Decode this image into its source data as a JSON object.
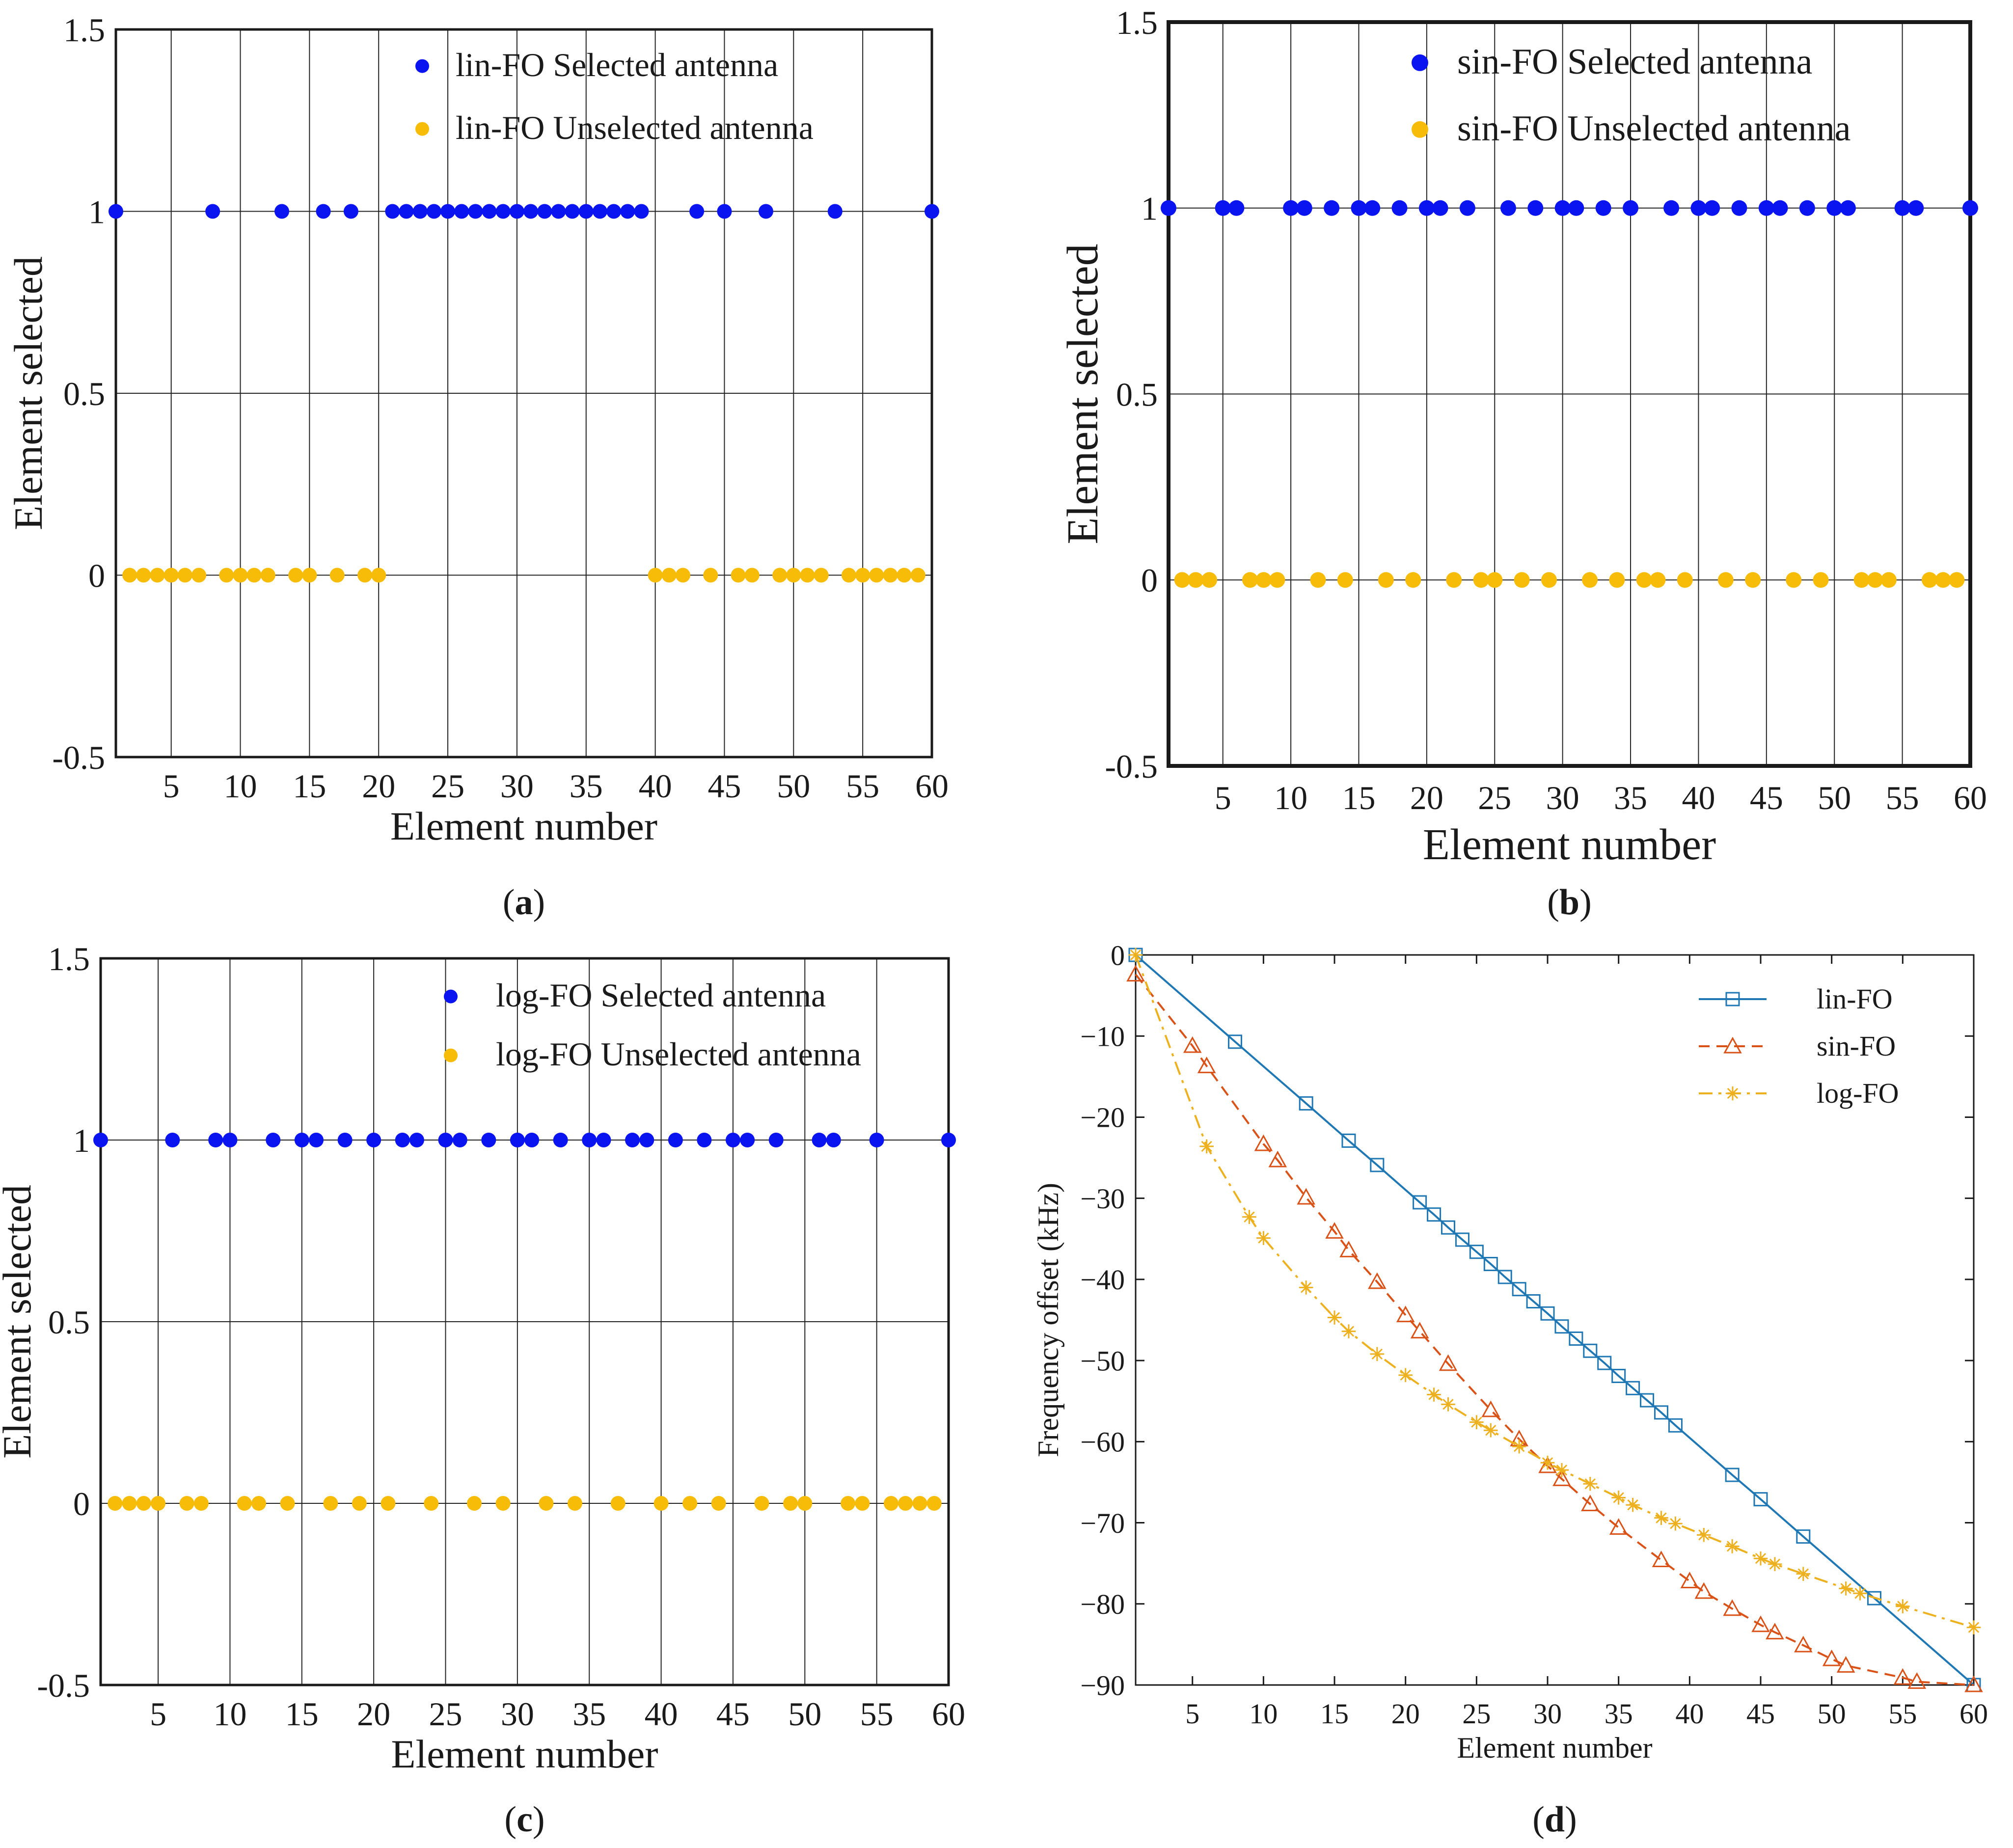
{
  "colors": {
    "selected": "#0a14f0",
    "unselected": "#f7bc08",
    "lin": "#1f77b4",
    "sin": "#d95319",
    "log": "#edb120",
    "axis": "#1a1a1a"
  },
  "chart_data": [
    {
      "id": "a",
      "type": "scatter",
      "caption_letter": "a",
      "xlabel": "Element number",
      "ylabel": "Element selected",
      "xlim": [
        1,
        60
      ],
      "ylim": [
        -0.5,
        1.5
      ],
      "x_ticks": [
        5,
        10,
        15,
        20,
        25,
        30,
        35,
        40,
        45,
        50,
        55,
        60
      ],
      "y_ticks": [
        -0.5,
        0,
        0.5,
        1,
        1.5
      ],
      "y_tick_labels": [
        "-0.5",
        "0",
        "0.5",
        "1",
        "1.5"
      ],
      "grid": true,
      "legend_position": "top-right",
      "series": [
        {
          "name": "lin-FO Selected antenna",
          "y": 1,
          "x": [
            1,
            8,
            13,
            16,
            18,
            21,
            22,
            23,
            24,
            25,
            26,
            27,
            28,
            29,
            30,
            31,
            32,
            33,
            34,
            35,
            36,
            37,
            38,
            39,
            43,
            45,
            48,
            53,
            60
          ]
        },
        {
          "name": "lin-FO Unselected antenna",
          "y": 0,
          "x": [
            2,
            3,
            4,
            5,
            6,
            7,
            9,
            10,
            11,
            12,
            14,
            15,
            17,
            19,
            20,
            40,
            41,
            42,
            44,
            46,
            47,
            49,
            50,
            51,
            52,
            54,
            55,
            56,
            57,
            58,
            59
          ]
        }
      ]
    },
    {
      "id": "b",
      "type": "scatter",
      "caption_letter": "b",
      "xlabel": "Element number",
      "ylabel": "Element selected",
      "xlim": [
        1,
        60
      ],
      "ylim": [
        -0.5,
        1.5
      ],
      "x_ticks": [
        5,
        10,
        15,
        20,
        25,
        30,
        35,
        40,
        45,
        50,
        55,
        60
      ],
      "y_ticks": [
        -0.5,
        0,
        0.5,
        1,
        1.5
      ],
      "y_tick_labels": [
        "-0.5",
        "0",
        "0.5",
        "1",
        "1.5"
      ],
      "grid": true,
      "legend_position": "top-right",
      "series": [
        {
          "name": "sin-FO Selected antenna",
          "y": 1,
          "x": [
            1,
            5,
            6,
            10,
            11,
            13,
            15,
            16,
            18,
            20,
            21,
            23,
            26,
            28,
            30,
            31,
            33,
            35,
            38,
            40,
            41,
            43,
            45,
            46,
            48,
            50,
            51,
            55,
            56,
            60
          ]
        },
        {
          "name": "sin-FO Unselected antenna",
          "y": 0,
          "x": [
            2,
            3,
            4,
            7,
            8,
            9,
            12,
            14,
            17,
            19,
            22,
            24,
            25,
            27,
            29,
            32,
            34,
            36,
            37,
            39,
            42,
            44,
            47,
            49,
            52,
            53,
            54,
            57,
            58,
            59
          ]
        }
      ]
    },
    {
      "id": "c",
      "type": "scatter",
      "caption_letter": "c",
      "xlabel": "Element number",
      "ylabel": "Element selected",
      "xlim": [
        1,
        60
      ],
      "ylim": [
        -0.5,
        1.5
      ],
      "x_ticks": [
        5,
        10,
        15,
        20,
        25,
        30,
        35,
        40,
        45,
        50,
        55,
        60
      ],
      "y_ticks": [
        -0.5,
        0,
        0.5,
        1,
        1.5
      ],
      "y_tick_labels": [
        "-0.5",
        "0",
        "0.5",
        "1",
        "1.5"
      ],
      "grid": true,
      "legend_position": "top-right",
      "series": [
        {
          "name": "log-FO Selected antenna",
          "y": 1,
          "x": [
            1,
            6,
            9,
            10,
            13,
            15,
            16,
            18,
            20,
            22,
            23,
            25,
            26,
            28,
            30,
            31,
            33,
            35,
            36,
            38,
            39,
            41,
            43,
            45,
            46,
            48,
            51,
            52,
            55,
            60
          ]
        },
        {
          "name": "log-FO Unselected antenna",
          "y": 0,
          "x": [
            2,
            3,
            4,
            5,
            7,
            8,
            11,
            12,
            14,
            17,
            19,
            21,
            24,
            27,
            29,
            32,
            34,
            37,
            40,
            42,
            44,
            47,
            49,
            50,
            53,
            54,
            56,
            57,
            58,
            59
          ]
        }
      ]
    },
    {
      "id": "d",
      "type": "line",
      "caption_letter": "d",
      "xlabel": "Element number",
      "ylabel": "Frequency offset (kHz)",
      "xlim": [
        1,
        60
      ],
      "ylim": [
        -90,
        0
      ],
      "x_ticks": [
        5,
        10,
        15,
        20,
        25,
        30,
        35,
        40,
        45,
        50,
        55,
        60
      ],
      "y_ticks": [
        0,
        -10,
        -20,
        -30,
        -40,
        -50,
        -60,
        -70,
        -80,
        -90
      ],
      "y_tick_labels": [
        "0",
        "−10",
        "−20",
        "−30",
        "−40",
        "−50",
        "−60",
        "−70",
        "−80",
        "−90"
      ],
      "grid": false,
      "legend_position": "top-right",
      "series": [
        {
          "name": "lin-FO",
          "line": "solid",
          "marker": "square",
          "x": [
            1,
            8,
            13,
            16,
            18,
            21,
            22,
            23,
            24,
            25,
            26,
            27,
            28,
            29,
            30,
            31,
            32,
            33,
            34,
            35,
            36,
            37,
            38,
            39,
            43,
            45,
            48,
            53,
            60
          ],
          "y": [
            0,
            -10.7,
            -18.3,
            -22.9,
            -25.9,
            -30.5,
            -32.0,
            -33.6,
            -35.1,
            -36.6,
            -38.1,
            -39.7,
            -41.2,
            -42.7,
            -44.2,
            -45.8,
            -47.3,
            -48.8,
            -50.3,
            -51.9,
            -53.4,
            -54.9,
            -56.4,
            -58.0,
            -64.1,
            -67.1,
            -71.7,
            -79.3,
            -90
          ]
        },
        {
          "name": "sin-FO",
          "line": "dashed",
          "marker": "triangle",
          "x": [
            1,
            5,
            6,
            10,
            11,
            13,
            15,
            16,
            18,
            20,
            21,
            23,
            26,
            28,
            30,
            31,
            33,
            35,
            38,
            40,
            41,
            43,
            45,
            46,
            48,
            50,
            51,
            55,
            56,
            60
          ],
          "y": [
            -2.4,
            -11.2,
            -13.7,
            -23.3,
            -25.3,
            -29.9,
            -34.1,
            -36.4,
            -40.3,
            -44.4,
            -46.4,
            -50.4,
            -56.1,
            -59.7,
            -63.0,
            -64.6,
            -67.7,
            -70.6,
            -74.6,
            -77.2,
            -78.5,
            -80.6,
            -82.6,
            -83.5,
            -85.1,
            -86.8,
            -87.6,
            -89.1,
            -89.6,
            -90
          ]
        },
        {
          "name": "log-FO",
          "line": "dashdot",
          "marker": "asterisk",
          "x": [
            1,
            6,
            9,
            10,
            13,
            15,
            16,
            18,
            20,
            22,
            23,
            25,
            26,
            28,
            30,
            31,
            33,
            35,
            36,
            38,
            39,
            41,
            43,
            45,
            46,
            48,
            51,
            52,
            55,
            60
          ],
          "y": [
            0,
            -23.6,
            -32.3,
            -34.9,
            -41.0,
            -44.7,
            -46.4,
            -49.2,
            -51.8,
            -54.2,
            -55.4,
            -57.6,
            -58.6,
            -60.6,
            -62.6,
            -63.5,
            -65.2,
            -66.9,
            -67.8,
            -69.4,
            -70.1,
            -71.5,
            -72.9,
            -74.4,
            -75.1,
            -76.3,
            -78.1,
            -78.7,
            -80.3,
            -82.9
          ]
        }
      ]
    }
  ]
}
